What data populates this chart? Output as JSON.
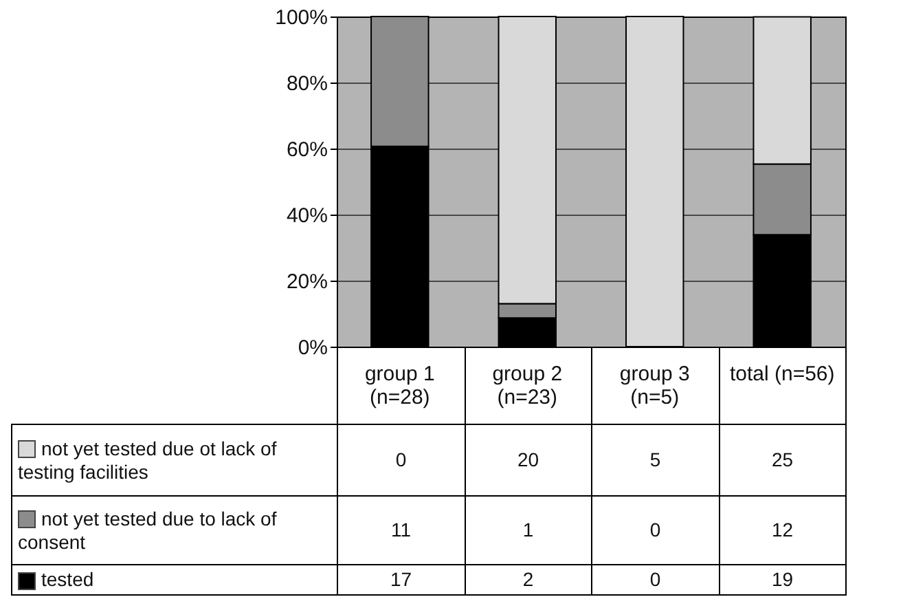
{
  "chart_data": {
    "type": "bar",
    "stacked": true,
    "categories": [
      "group 1\n(n=28)",
      "group 2\n(n=23)",
      "group 3\n(n=5)",
      "total  (n=56)"
    ],
    "series": [
      {
        "name": "tested",
        "color": "#000000",
        "values": [
          60.7,
          8.7,
          0,
          33.9
        ]
      },
      {
        "name": "not yet tested due to lack of consent",
        "color": "#8c8c8c",
        "values": [
          39.3,
          4.3,
          0,
          21.4
        ]
      },
      {
        "name": "not yet tested due ot lack of testing facilities",
        "color": "#d9d9d9",
        "values": [
          0,
          87.0,
          100,
          44.6
        ]
      }
    ],
    "annotations": [
      "0",
      "20",
      "5",
      "25",
      "11",
      "1",
      "0",
      "12",
      "17",
      "2",
      "0",
      "19"
    ],
    "ylim": [
      0,
      100
    ],
    "yticks": [
      {
        "value": 0,
        "label": "0%"
      },
      {
        "value": 20,
        "label": "20%"
      },
      {
        "value": 40,
        "label": "40%"
      },
      {
        "value": 60,
        "label": "60%"
      },
      {
        "value": 80,
        "label": "80%"
      },
      {
        "value": 100,
        "label": "100%"
      }
    ],
    "grid": "y",
    "legend": "bottom left"
  }
}
